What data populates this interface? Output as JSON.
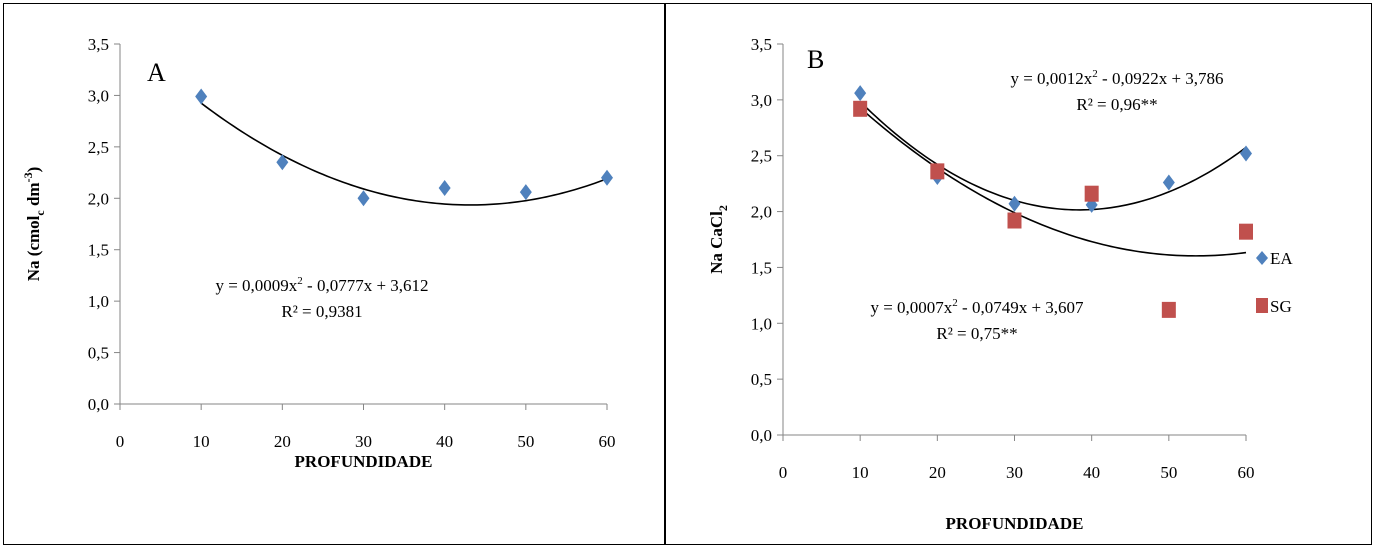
{
  "chart_data": [
    {
      "type": "scatter",
      "panel_label": "A",
      "xlabel": "PROFUNDIDADE",
      "ylabel": "Na (cmol_c dm^-3)",
      "ylabel_parts": {
        "main": "Na (cmol",
        "sub": "c",
        "mid": " dm",
        "sup": "-3",
        "end": ")"
      },
      "xlim": [
        0,
        60
      ],
      "ylim": [
        0,
        3.5
      ],
      "x_ticks": [
        "0",
        "10",
        "20",
        "30",
        "40",
        "50",
        "60"
      ],
      "y_ticks": [
        "0,0",
        "0,5",
        "1,0",
        "1,5",
        "2,0",
        "2,5",
        "3,0",
        "3,5"
      ],
      "series": [
        {
          "marker": "diamond",
          "color": "#4F81BD",
          "x": [
            10,
            20,
            30,
            40,
            50,
            60
          ],
          "y": [
            2.99,
            2.35,
            2.0,
            2.1,
            2.06,
            2.2
          ],
          "trendline": {
            "a": 0.0009,
            "b": -0.0777,
            "c": 3.612
          },
          "equation": "y = 0,0009x² - 0,0777x + 3,612",
          "r2": "R² = 0,9381"
        }
      ]
    },
    {
      "type": "scatter",
      "panel_label": "B",
      "xlabel": "PROFUNDIDADE",
      "ylabel": "Na CaCl2",
      "ylabel_parts": {
        "main": "Na CaCl",
        "sub": "2"
      },
      "xlim": [
        0,
        60
      ],
      "ylim": [
        0,
        3.5
      ],
      "x_ticks": [
        "0",
        "10",
        "20",
        "30",
        "40",
        "50",
        "60"
      ],
      "y_ticks": [
        "0,0",
        "0,5",
        "1,0",
        "1,5",
        "2,0",
        "2,5",
        "3,0",
        "3,5"
      ],
      "legend_position": "right",
      "series": [
        {
          "name": "EA",
          "marker": "diamond",
          "color": "#4F81BD",
          "x": [
            10,
            20,
            30,
            40,
            50,
            60
          ],
          "y": [
            3.06,
            2.31,
            2.07,
            2.06,
            2.26,
            2.52
          ],
          "trendline": {
            "a": 0.0012,
            "b": -0.0922,
            "c": 3.786
          },
          "equation": "y = 0,0012x² - 0,0922x + 3,786",
          "r2": "R² = 0,96**"
        },
        {
          "name": "SG",
          "marker": "square",
          "color": "#C0504D",
          "x": [
            10,
            20,
            30,
            40,
            50,
            60
          ],
          "y": [
            2.92,
            2.36,
            1.92,
            2.16,
            1.12,
            1.82
          ],
          "trendline": {
            "a": 0.0007,
            "b": -0.0749,
            "c": 3.607
          },
          "equation": "y = 0,0007x² - 0,0749x + 3,607",
          "r2": "R² = 0,75**"
        }
      ]
    }
  ]
}
